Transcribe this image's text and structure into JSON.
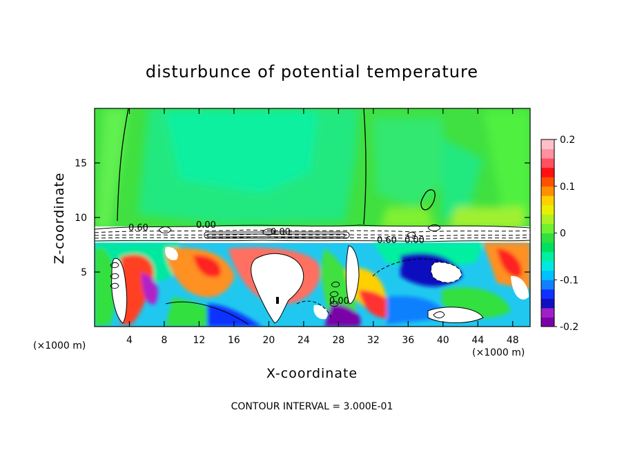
{
  "chart_data": {
    "type": "heatmap",
    "title": "disturbunce of potential temperature",
    "xlabel": "X-coordinate",
    "ylabel": "Z-coordinate",
    "x_unit": "(×1000 m)",
    "xlim": [
      0,
      50
    ],
    "ylim": [
      0,
      20
    ],
    "x_ticks": [
      4,
      8,
      12,
      16,
      20,
      24,
      28,
      32,
      36,
      40,
      44,
      48
    ],
    "y_ticks": [
      5,
      10,
      15
    ],
    "colorbar": {
      "min": -0.2,
      "max": 0.2,
      "ticks": [
        {
          "value": 0.2,
          "label": "0.2"
        },
        {
          "value": 0.1,
          "label": "0.1"
        },
        {
          "value": 0,
          "label": "0"
        },
        {
          "value": -0.1,
          "label": "-0.1"
        },
        {
          "value": -0.2,
          "label": "-0.2"
        }
      ],
      "colors": [
        "#7a00a8",
        "#a020c8",
        "#1010c0",
        "#1030ff",
        "#1080ff",
        "#00c0ff",
        "#00e8e0",
        "#00f0a0",
        "#00e060",
        "#30e040",
        "#70f030",
        "#b0f020",
        "#e8f000",
        "#ffd000",
        "#ff9000",
        "#ff5000",
        "#ff1010",
        "#ff5060",
        "#ff90a0",
        "#ffc0c8"
      ]
    },
    "contour_interval_text": "CONTOUR INTERVAL = 3.000E-01",
    "contour_labels": [
      "0.60",
      "0.00",
      "0.00",
      "0.60",
      "0.00",
      "0.00"
    ],
    "upper_region_value": 0.0,
    "inversion_height_km": 8.8
  }
}
